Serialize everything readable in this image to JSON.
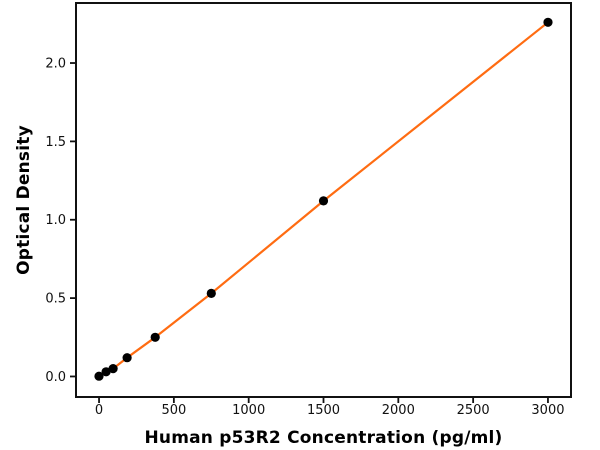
{
  "figure": {
    "background": "#ffffff",
    "axis_color": "#111111",
    "tick_label_color": "#111111"
  },
  "chart_data": {
    "type": "scatter",
    "title": "",
    "xlabel": "Human p53R2 Concentration (pg/ml)",
    "ylabel": "Optical Density",
    "xlim": [
      -154,
      3154
    ],
    "ylim": [
      -0.131,
      2.383
    ],
    "grid": false,
    "legend_position": "none",
    "x_tick_values": [
      0,
      500,
      1000,
      1500,
      2000,
      2500,
      3000
    ],
    "x_tick_labels": [
      "0",
      "500",
      "1000",
      "1500",
      "2000",
      "2500",
      "3000"
    ],
    "y_tick_values": [
      0.0,
      0.5,
      1.0,
      1.5,
      2.0
    ],
    "y_tick_labels": [
      "0.0",
      "0.5",
      "1.0",
      "1.5",
      "2.0"
    ],
    "series": [
      {
        "name": "fit-line",
        "type": "line",
        "color": "#ff6c12",
        "line_width": 2.2,
        "x": [
          0,
          46.9,
          93.8,
          187.5,
          375,
          750,
          1500,
          3000
        ],
        "y": [
          0.002,
          0.03,
          0.05,
          0.12,
          0.25,
          0.53,
          1.12,
          2.26
        ]
      },
      {
        "name": "standard-points",
        "type": "scatter",
        "color": "#000000",
        "marker_radius": 4.6,
        "x": [
          0,
          46.9,
          93.8,
          187.5,
          375,
          750,
          1500,
          3000
        ],
        "y": [
          0.002,
          0.03,
          0.05,
          0.12,
          0.25,
          0.53,
          1.12,
          2.26
        ]
      }
    ]
  }
}
